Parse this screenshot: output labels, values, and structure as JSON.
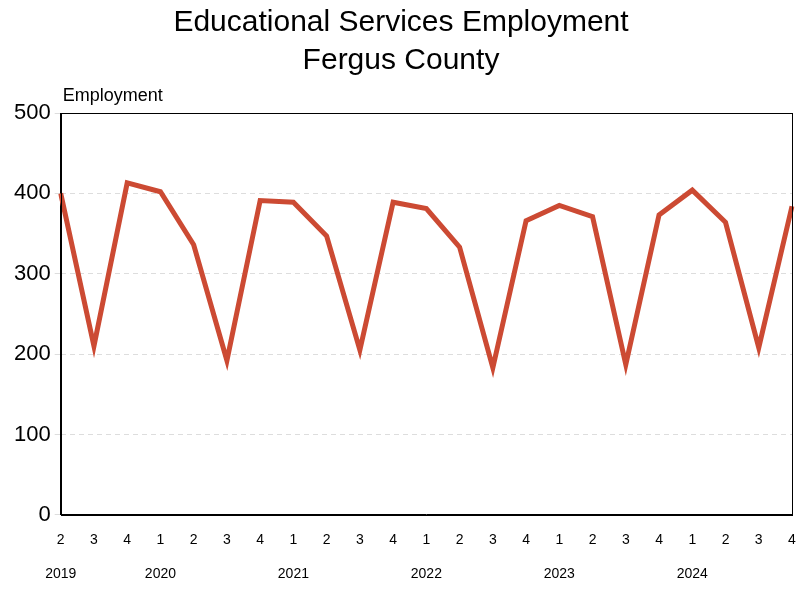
{
  "chart_data": {
    "type": "line",
    "title": [
      "Educational Services Employment",
      "Fergus County"
    ],
    "y_label": "Employment",
    "categories": [
      [
        "2",
        "2019"
      ],
      [
        "3"
      ],
      [
        "4"
      ],
      [
        "1",
        "2020"
      ],
      [
        "2"
      ],
      [
        "3"
      ],
      [
        "4"
      ],
      [
        "1",
        "2021"
      ],
      [
        "2"
      ],
      [
        "3"
      ],
      [
        "4"
      ],
      [
        "1",
        "2022"
      ],
      [
        "2"
      ],
      [
        "3"
      ],
      [
        "4"
      ],
      [
        "1",
        "2023"
      ],
      [
        "2"
      ],
      [
        "3"
      ],
      [
        "4"
      ],
      [
        "1",
        "2024"
      ],
      [
        "2"
      ],
      [
        "3"
      ],
      [
        "4"
      ]
    ],
    "values": [
      400,
      210,
      413,
      402,
      336,
      192,
      391,
      389,
      347,
      205,
      389,
      381,
      333,
      183,
      366,
      385,
      371,
      187,
      373,
      404,
      364,
      208,
      384
    ],
    "color": "#cc4a33",
    "marker": "none",
    "ylim": [
      0,
      500
    ],
    "yticks": [
      0,
      100,
      200,
      300,
      400,
      500
    ],
    "grid": true
  }
}
